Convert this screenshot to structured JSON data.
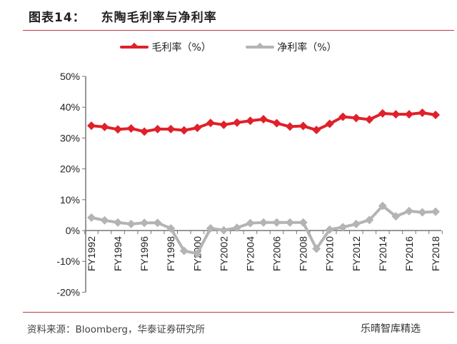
{
  "header": {
    "label": "图表14：",
    "title": "东陶毛利率与净利率"
  },
  "footer": {
    "source": "资料来源：Bloomberg，华泰证券研究所",
    "watermark": "乐晴智库精选"
  },
  "chart_data": {
    "type": "line",
    "title": "东陶毛利率与净利率",
    "xlabel": "",
    "ylabel": "",
    "ylim": [
      -20,
      50
    ],
    "yticks": [
      "50%",
      "40%",
      "30%",
      "20%",
      "10%",
      "0%",
      "-10%",
      "-20%"
    ],
    "ytick_values": [
      50,
      40,
      30,
      20,
      10,
      0,
      -10,
      -20
    ],
    "grid": false,
    "legend_position": "top",
    "categories": [
      "FY1992",
      "FY1993",
      "FY1994",
      "FY1995",
      "FY1996",
      "FY1997",
      "FY1998",
      "FY1999",
      "FY2000",
      "FY2001",
      "FY2002",
      "FY2003",
      "FY2004",
      "FY2005",
      "FY2006",
      "FY2007",
      "FY2008",
      "FY2009",
      "FY2010",
      "FY2011",
      "FY2012",
      "FY2013",
      "FY2014",
      "FY2015",
      "FY2016",
      "FY2017",
      "FY2018"
    ],
    "xtick_labels": [
      "FY1992",
      "FY1994",
      "FY1996",
      "FY1998",
      "FY2000",
      "FY2002",
      "FY2004",
      "FY2006",
      "FY2008",
      "FY2010",
      "FY2012",
      "FY2014",
      "FY2016",
      "FY2018"
    ],
    "series": [
      {
        "name": "毛利率（%）",
        "color": "#e0202a",
        "values": [
          34.0,
          33.6,
          32.8,
          33.1,
          32.1,
          32.9,
          32.9,
          32.5,
          33.3,
          34.9,
          34.3,
          35.0,
          35.6,
          36.1,
          34.8,
          33.7,
          33.9,
          32.6,
          34.6,
          36.9,
          36.5,
          36.0,
          38.0,
          37.7,
          37.7,
          38.2,
          37.5
        ]
      },
      {
        "name": "净利率（%）",
        "color": "#b4b4b4",
        "values": [
          4.2,
          3.3,
          2.6,
          2.1,
          2.5,
          2.5,
          0.7,
          -6.6,
          -7.5,
          0.7,
          0.1,
          0.9,
          2.4,
          2.6,
          2.6,
          2.6,
          2.6,
          -5.9,
          0.3,
          1.1,
          2.1,
          3.4,
          8.0,
          4.6,
          6.3,
          5.9,
          6.1
        ]
      }
    ]
  }
}
